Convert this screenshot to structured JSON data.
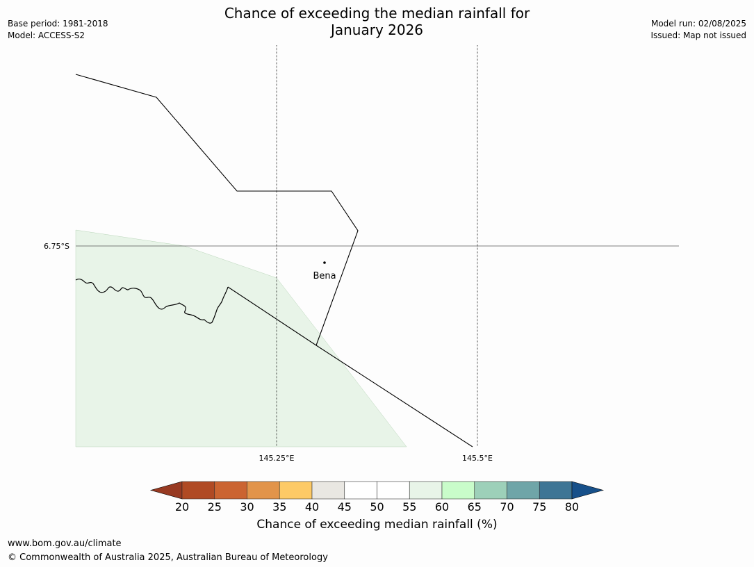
{
  "header": {
    "title_line1": "Chance of exceeding the median rainfall for",
    "title_line2": "January 2026",
    "base_period": "Base period: 1981-2018",
    "model": "Model: ACCESS-S2",
    "model_run": "Model run: 02/08/2025",
    "issued": "Issued: Map not issued"
  },
  "map": {
    "lat_labels": [
      "6.75°S"
    ],
    "lon_labels": [
      "145.25°E",
      "145.5°E"
    ],
    "places": [
      {
        "name": "Bena"
      }
    ],
    "fill_color": "#e8f4e8"
  },
  "colorbar": {
    "ticks": [
      "20",
      "25",
      "30",
      "35",
      "40",
      "45",
      "50",
      "55",
      "60",
      "65",
      "70",
      "75",
      "80"
    ],
    "under_color": "#983a22",
    "over_color": "#17508a",
    "colors": [
      "#b04a24",
      "#cb6431",
      "#e2944a",
      "#fdca66",
      "#e9e7e2",
      "#ffffff",
      "#ffffff",
      "#e8f4e8",
      "#c9fcca",
      "#9dd0b9",
      "#6fa5a8",
      "#3e7595"
    ],
    "label": "Chance of exceeding median rainfall (%)"
  },
  "footer": {
    "url": "www.bom.gov.au/climate",
    "copyright": "© Commonwealth of Australia 2025, Australian Bureau of Meteorology"
  }
}
